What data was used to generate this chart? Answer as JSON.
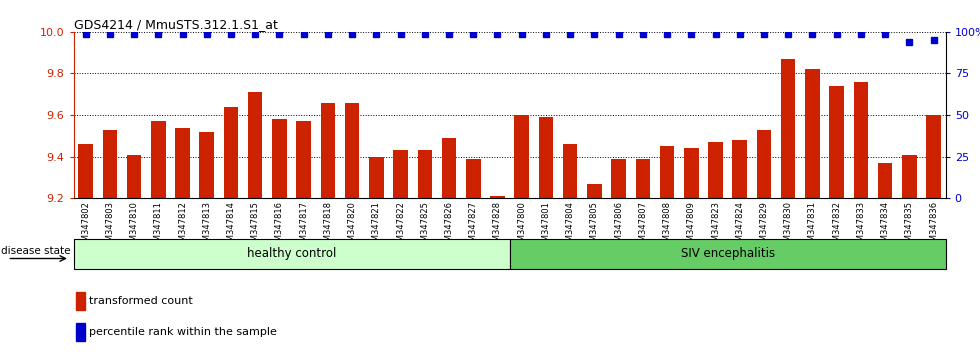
{
  "title": "GDS4214 / MmuSTS.312.1.S1_at",
  "categories": [
    "GSM347802",
    "GSM347803",
    "GSM347810",
    "GSM347811",
    "GSM347812",
    "GSM347813",
    "GSM347814",
    "GSM347815",
    "GSM347816",
    "GSM347817",
    "GSM347818",
    "GSM347820",
    "GSM347821",
    "GSM347822",
    "GSM347825",
    "GSM347826",
    "GSM347827",
    "GSM347828",
    "GSM347800",
    "GSM347801",
    "GSM347804",
    "GSM347805",
    "GSM347806",
    "GSM347807",
    "GSM347808",
    "GSM347809",
    "GSM347823",
    "GSM347824",
    "GSM347829",
    "GSM347830",
    "GSM347831",
    "GSM347832",
    "GSM347833",
    "GSM347834",
    "GSM347835",
    "GSM347836"
  ],
  "values": [
    9.46,
    9.53,
    9.41,
    9.57,
    9.54,
    9.52,
    9.64,
    9.71,
    9.58,
    9.57,
    9.66,
    9.66,
    9.4,
    9.43,
    9.43,
    9.49,
    9.39,
    9.21,
    9.6,
    9.59,
    9.46,
    9.27,
    9.39,
    9.39,
    9.45,
    9.44,
    9.47,
    9.48,
    9.53,
    9.87,
    9.82,
    9.74,
    9.76,
    9.37,
    9.41,
    9.6
  ],
  "percentile_values": [
    99,
    99,
    99,
    99,
    99,
    99,
    99,
    99,
    99,
    99,
    99,
    99,
    99,
    99,
    99,
    99,
    99,
    99,
    99,
    99,
    99,
    99,
    99,
    99,
    99,
    99,
    99,
    99,
    99,
    99,
    99,
    99,
    99,
    99,
    94,
    95
  ],
  "bar_color": "#cc2200",
  "dot_color": "#0000cc",
  "healthy_control_count": 18,
  "siv_encephalitis_count": 18,
  "healthy_color": "#ccffcc",
  "siv_color": "#66cc66",
  "ylim_left": [
    9.2,
    10.0
  ],
  "ylim_right": [
    0,
    100
  ],
  "yticks_left": [
    9.2,
    9.4,
    9.6,
    9.8,
    10.0
  ],
  "yticks_right": [
    0,
    25,
    50,
    75,
    100
  ],
  "yticklabels_right": [
    "0",
    "25",
    "50",
    "75",
    "100%"
  ],
  "dotted_grid_values": [
    9.4,
    9.6,
    9.8,
    10.0
  ],
  "legend_items": [
    {
      "color": "#cc2200",
      "label": "transformed count"
    },
    {
      "color": "#0000cc",
      "label": "percentile rank within the sample"
    }
  ],
  "disease_state_label": "disease state",
  "healthy_label": "healthy control",
  "siv_label": "SIV encephalitis"
}
